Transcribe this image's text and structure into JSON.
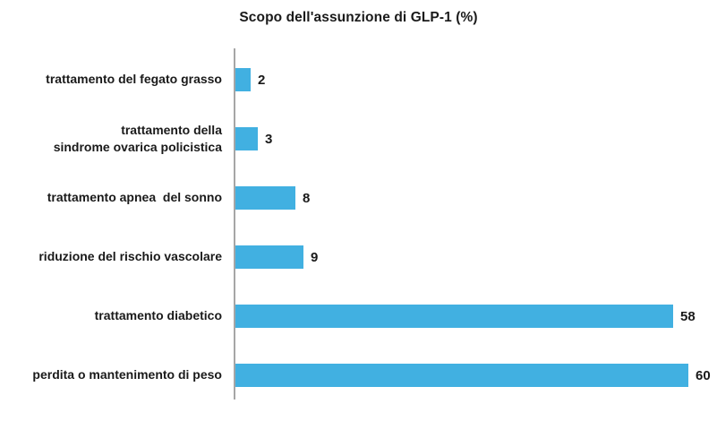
{
  "chart_data": {
    "type": "bar",
    "orientation": "horizontal",
    "title": "Scopo dell'assunzione di GLP-1 (%)",
    "categories": [
      "trattamento del fegato grasso",
      "trattamento della\nsindrome ovarica policistica",
      "trattamento apnea  del sonno",
      "riduzione del rischio vascolare",
      "trattamento diabetico",
      "perdita o mantenimento di peso"
    ],
    "values": [
      2,
      3,
      8,
      9,
      58,
      60
    ],
    "value_labels": [
      "2",
      "3",
      "8",
      "9",
      "58",
      "60"
    ],
    "xlabel": "",
    "ylabel": "",
    "xlim": [
      0,
      60
    ],
    "grid": false,
    "legend": false,
    "colors": {
      "bar": "#41b0e1",
      "axis": "#a6a6a6",
      "text": "#1a1a1a",
      "background": "#ffffff"
    }
  }
}
